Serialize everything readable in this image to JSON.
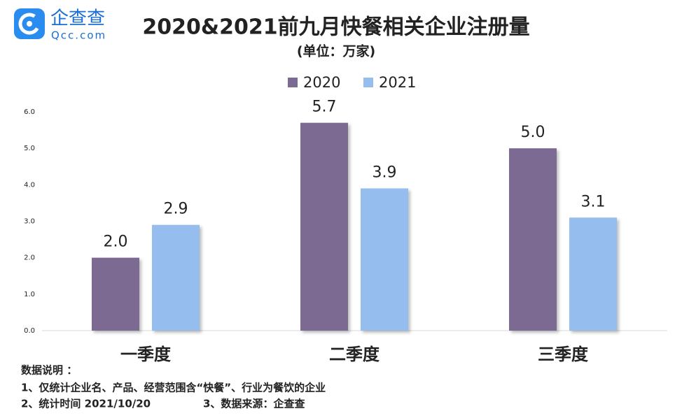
{
  "chart_data": {
    "type": "bar",
    "title": "2020&2021前九月快餐相关企业注册量",
    "subtitle": "(单位：万家)",
    "categories": [
      "一季度",
      "二季度",
      "三季度"
    ],
    "series": [
      {
        "name": "2020",
        "color": "#7b6a93",
        "values": [
          2.0,
          5.7,
          5.0
        ],
        "value_labels": [
          "2.0",
          "5.7",
          "5.0"
        ]
      },
      {
        "name": "2021",
        "color": "#95bdee",
        "values": [
          2.9,
          3.9,
          3.1
        ],
        "value_labels": [
          "2.9",
          "3.9",
          "3.1"
        ]
      }
    ],
    "ylim": [
      0,
      6
    ],
    "yticks": [
      {
        "value": 0,
        "label": "0.0"
      },
      {
        "value": 1,
        "label": "1.0"
      },
      {
        "value": 2,
        "label": "2.0"
      },
      {
        "value": 3,
        "label": "3.0"
      },
      {
        "value": 4,
        "label": "4.0"
      },
      {
        "value": 5,
        "label": "5.0"
      },
      {
        "value": 6,
        "label": "6.0"
      }
    ],
    "grid": false,
    "legend": "top"
  },
  "logo": {
    "name": "企查查",
    "url": "Qcc.com"
  },
  "notes": [
    "数据说明 ：",
    "1、仅统计企业名、产品、经营范围含“快餐”、行业为餐饮的企业",
    "2、统计时间 2021/10/20",
    "3、数据来源：企查查"
  ]
}
